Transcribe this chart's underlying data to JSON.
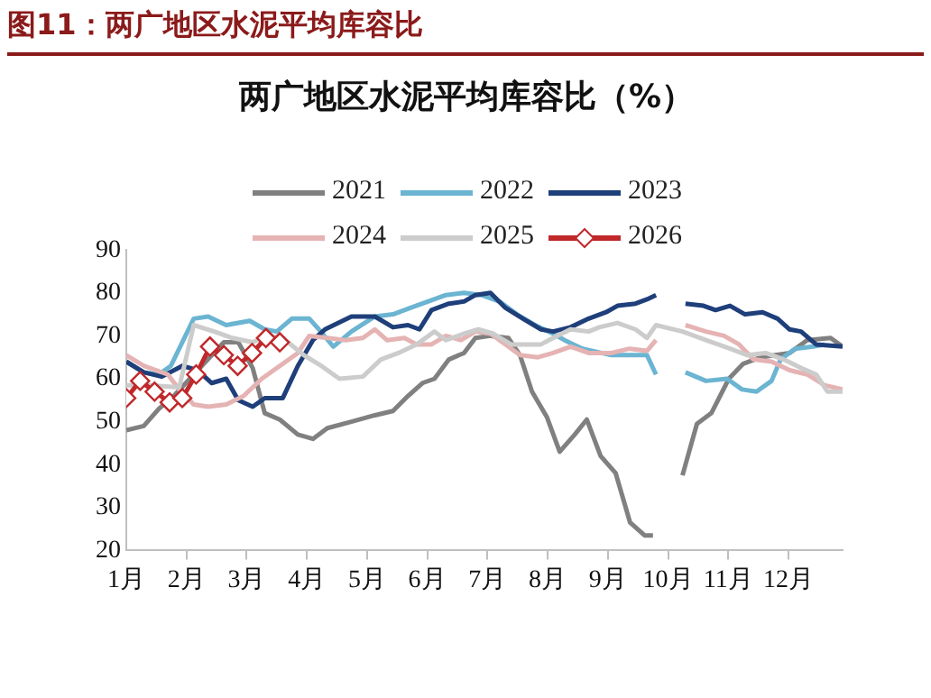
{
  "chart_data": {
    "type": "line",
    "title": "两广地区水泥平均库容比（%）",
    "annotations": [
      "图11：两广地区水泥平均库容比"
    ],
    "xlim": [
      1,
      12.9
    ],
    "xticks": [
      {
        "value": 1,
        "label": "1月"
      },
      {
        "value": 2,
        "label": "2月"
      },
      {
        "value": 3,
        "label": "3月"
      },
      {
        "value": 4,
        "label": "4月"
      },
      {
        "value": 5,
        "label": "5月"
      },
      {
        "value": 6,
        "label": "6月"
      },
      {
        "value": 7,
        "label": "7月"
      },
      {
        "value": 8,
        "label": "8月"
      },
      {
        "value": 9,
        "label": "9月"
      },
      {
        "value": 10,
        "label": "10月"
      },
      {
        "value": 11,
        "label": "11月"
      },
      {
        "value": 12,
        "label": "12月"
      }
    ],
    "ylim": [
      20,
      90
    ],
    "yticks": [
      20,
      30,
      40,
      50,
      60,
      70,
      80,
      90
    ],
    "grid": false,
    "legend": "top right",
    "series": [
      {
        "name": "2021",
        "color": "#808080",
        "marker": "none",
        "x": [
          1,
          1.29,
          1.54,
          1.79,
          2.62,
          2.86,
          3.1,
          3.3,
          3.55,
          3.85,
          4.1,
          4.34,
          4.74,
          5.13,
          5.43,
          5.68,
          5.92,
          6.12,
          6.36,
          6.61,
          6.8,
          7.05,
          7.35,
          7.54,
          7.74,
          7.99,
          8.2,
          8.45,
          8.65,
          8.88,
          9.13,
          9.37,
          9.61,
          9.75,
          10,
          10.24,
          10.48,
          10.72,
          11.01,
          11.25,
          11.54,
          11.78,
          12.02,
          12.31,
          12.7,
          12.9
        ],
        "values": [
          48,
          49,
          53,
          56,
          68.5,
          68.5,
          62.5,
          52,
          50.5,
          47,
          46,
          48.5,
          50,
          51.5,
          52.5,
          56,
          59,
          60,
          64.5,
          66,
          69.5,
          70,
          69.5,
          65.5,
          57,
          51,
          43,
          47,
          50.5,
          42,
          38,
          26.5,
          23.5,
          23.5,
          null,
          37.5,
          49.5,
          52,
          60,
          63.5,
          65,
          65.5,
          66,
          69,
          69.5,
          67.5
        ]
      },
      {
        "name": "2022",
        "color": "#6bb4d2",
        "marker": "none",
        "x": [
          1,
          1.29,
          1.54,
          1.74,
          2.12,
          2.36,
          2.66,
          3.05,
          3.3,
          3.5,
          3.75,
          4.04,
          4.2,
          4.44,
          4.74,
          5.13,
          5.43,
          5.72,
          6.01,
          6.31,
          6.61,
          6.9,
          7.2,
          7.49,
          7.79,
          8.09,
          8.28,
          8.58,
          9.06,
          9.36,
          9.65,
          9.8,
          10,
          10.29,
          10.63,
          10.98,
          11.23,
          11.47,
          11.72,
          11.87,
          12.11,
          12.41,
          12.6
        ],
        "values": [
          64,
          61.5,
          61,
          63,
          74,
          74.5,
          72.5,
          73.5,
          71.5,
          71,
          74,
          74,
          71.5,
          67.5,
          71,
          74.5,
          75,
          76.5,
          78,
          79.5,
          80,
          79.5,
          78,
          75,
          72.5,
          70.5,
          69,
          67,
          65.5,
          65.5,
          65.5,
          61,
          null,
          61.5,
          59.5,
          60,
          57.5,
          57,
          59.5,
          64.5,
          67,
          67.5,
          68
        ]
      },
      {
        "name": "2023",
        "color": "#1f3f7a",
        "marker": "none",
        "x": [
          1,
          1.29,
          1.59,
          1.93,
          2.18,
          2.42,
          2.66,
          2.86,
          3.1,
          3.3,
          3.6,
          3.85,
          4.1,
          4.3,
          4.74,
          5.13,
          5.43,
          5.68,
          5.87,
          6.07,
          6.36,
          6.61,
          6.8,
          7.05,
          7.3,
          7.59,
          7.89,
          8.09,
          8.38,
          8.68,
          8.97,
          9.16,
          9.46,
          9.65,
          9.8,
          10,
          10.29,
          10.59,
          10.79,
          11.03,
          11.28,
          11.57,
          11.82,
          12.02,
          12.21,
          12.46,
          12.9
        ],
        "values": [
          64,
          61.5,
          60.5,
          63,
          62,
          59,
          60,
          55,
          53.5,
          55.5,
          55.5,
          63,
          69,
          71.5,
          74.5,
          74.5,
          72,
          72.5,
          71.5,
          76,
          77.5,
          78,
          79.5,
          80,
          76.5,
          74,
          71.5,
          71,
          72,
          74,
          75.5,
          77,
          77.5,
          78.5,
          79.5,
          null,
          77.5,
          77,
          76,
          77,
          75,
          75.5,
          74,
          71.5,
          71,
          68,
          67.5
        ]
      },
      {
        "name": "2024",
        "color": "#e5b3b3",
        "marker": "none",
        "x": [
          1,
          1.29,
          1.69,
          1.88,
          2.12,
          2.36,
          2.66,
          2.95,
          3.25,
          3.55,
          3.85,
          4.04,
          4.34,
          4.64,
          4.93,
          5.13,
          5.33,
          5.62,
          5.82,
          6.07,
          6.31,
          6.56,
          6.8,
          7.05,
          7.3,
          7.54,
          7.84,
          8.09,
          8.38,
          8.68,
          9.06,
          9.36,
          9.65,
          9.8,
          10,
          10.29,
          10.63,
          10.93,
          11.18,
          11.42,
          11.72,
          12.02,
          12.31,
          12.6,
          12.9
        ],
        "values": [
          65.5,
          63,
          61,
          57.5,
          54,
          53.5,
          54,
          56,
          60,
          63,
          66,
          70,
          69.5,
          69,
          69.5,
          71.5,
          69,
          69.5,
          68,
          68,
          70,
          69,
          71,
          70.5,
          68,
          65.5,
          65,
          66,
          67.5,
          66,
          66,
          67,
          66.5,
          69,
          null,
          72.5,
          71,
          70,
          68,
          64.5,
          64,
          62,
          61,
          58.5,
          57.5
        ]
      },
      {
        "name": "2025",
        "color": "#cccccc",
        "marker": "none",
        "x": [
          1,
          1.39,
          1.88,
          2.12,
          2.46,
          2.76,
          3.1,
          3.35,
          3.6,
          3.95,
          4.24,
          4.54,
          4.93,
          5.23,
          5.52,
          5.82,
          6.12,
          6.31,
          6.61,
          6.85,
          7.1,
          7.39,
          7.69,
          7.89,
          8.09,
          8.38,
          8.68,
          8.86,
          9.16,
          9.46,
          9.65,
          9.8,
          10.24,
          10.63,
          11.03,
          11.32,
          11.62,
          11.92,
          12.21,
          12.46,
          12.65,
          12.9
        ],
        "values": [
          58.5,
          58.5,
          58,
          72.5,
          71,
          69.5,
          68.5,
          70,
          69.5,
          65.5,
          63,
          60,
          60.5,
          64.5,
          66,
          68,
          71,
          69,
          70.5,
          71.5,
          70.5,
          68,
          68,
          68,
          69.5,
          71.5,
          71,
          72,
          73,
          71.5,
          69.5,
          72.5,
          71,
          69,
          67,
          65.5,
          66,
          64.5,
          62.5,
          61,
          57,
          57
        ]
      },
      {
        "name": "2026",
        "color": "#c0282a",
        "marker": "diamond",
        "x": [
          1,
          1.23,
          1.47,
          1.72,
          1.93,
          2.16,
          2.39,
          2.62,
          2.85,
          3.09,
          3.32,
          3.55
        ],
        "values": [
          55.5,
          59.5,
          57,
          54.5,
          55.5,
          61,
          67.5,
          65.5,
          63,
          66,
          69.5,
          68.5
        ]
      }
    ]
  }
}
